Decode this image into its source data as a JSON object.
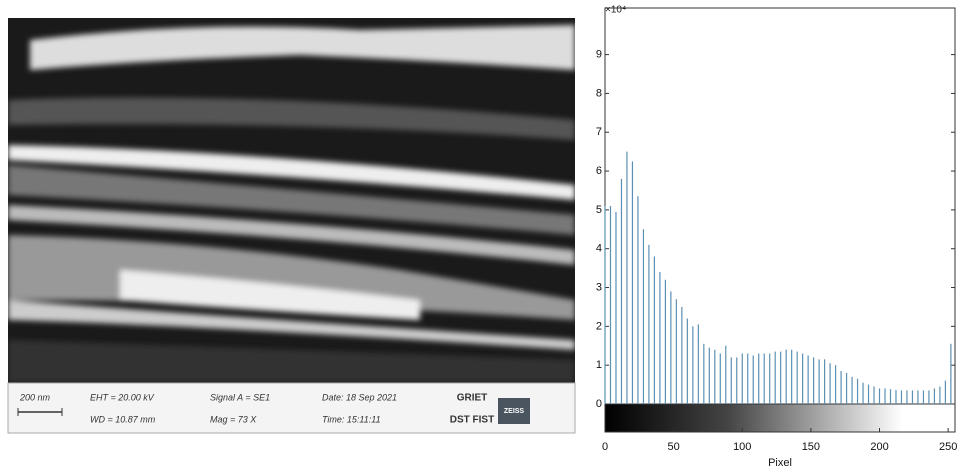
{
  "image_info": {
    "scale": "200 nm",
    "eht": "EHT = 20.00 kV",
    "wd": "WD = 10.87 mm",
    "signal": "Signal A = SE1",
    "mag": "Mag = 73 X",
    "date": "Date: 18 Sep 2021",
    "time": "Time: 15:11:11",
    "institute": "GRIET",
    "program": "DST FIST",
    "logo": "ZEISS"
  },
  "chart_data": {
    "type": "bar",
    "xlabel": "Pixel",
    "y_exponent_label": "×10⁴",
    "color": "#5b8fb3",
    "x": [
      0,
      4,
      8,
      12,
      16,
      20,
      24,
      28,
      32,
      36,
      40,
      44,
      48,
      52,
      56,
      60,
      64,
      68,
      72,
      76,
      80,
      84,
      88,
      92,
      96,
      100,
      104,
      108,
      112,
      116,
      120,
      124,
      128,
      132,
      136,
      140,
      144,
      148,
      152,
      156,
      160,
      164,
      168,
      172,
      176,
      180,
      184,
      188,
      192,
      196,
      200,
      204,
      208,
      212,
      216,
      220,
      224,
      228,
      232,
      236,
      240,
      244,
      248,
      252
    ],
    "values": [
      5.1,
      5.1,
      4.95,
      5.8,
      6.5,
      6.25,
      5.35,
      4.5,
      4.1,
      3.8,
      3.4,
      3.2,
      2.9,
      2.7,
      2.5,
      2.2,
      2.0,
      2.05,
      1.55,
      1.45,
      1.4,
      1.3,
      1.5,
      1.2,
      1.2,
      1.3,
      1.3,
      1.25,
      1.3,
      1.3,
      1.3,
      1.35,
      1.35,
      1.4,
      1.4,
      1.35,
      1.3,
      1.25,
      1.2,
      1.15,
      1.15,
      1.05,
      1.0,
      0.85,
      0.8,
      0.7,
      0.65,
      0.55,
      0.5,
      0.45,
      0.4,
      0.4,
      0.38,
      0.36,
      0.35,
      0.35,
      0.35,
      0.35,
      0.35,
      0.35,
      0.4,
      0.45,
      0.6,
      1.55
    ],
    "xlim": [
      0,
      255
    ],
    "ylim": [
      0,
      10.2
    ],
    "xticks": [
      0,
      50,
      100,
      150,
      200,
      250
    ],
    "yticks": [
      0,
      1,
      2,
      3,
      4,
      5,
      6,
      7,
      8,
      9
    ]
  }
}
